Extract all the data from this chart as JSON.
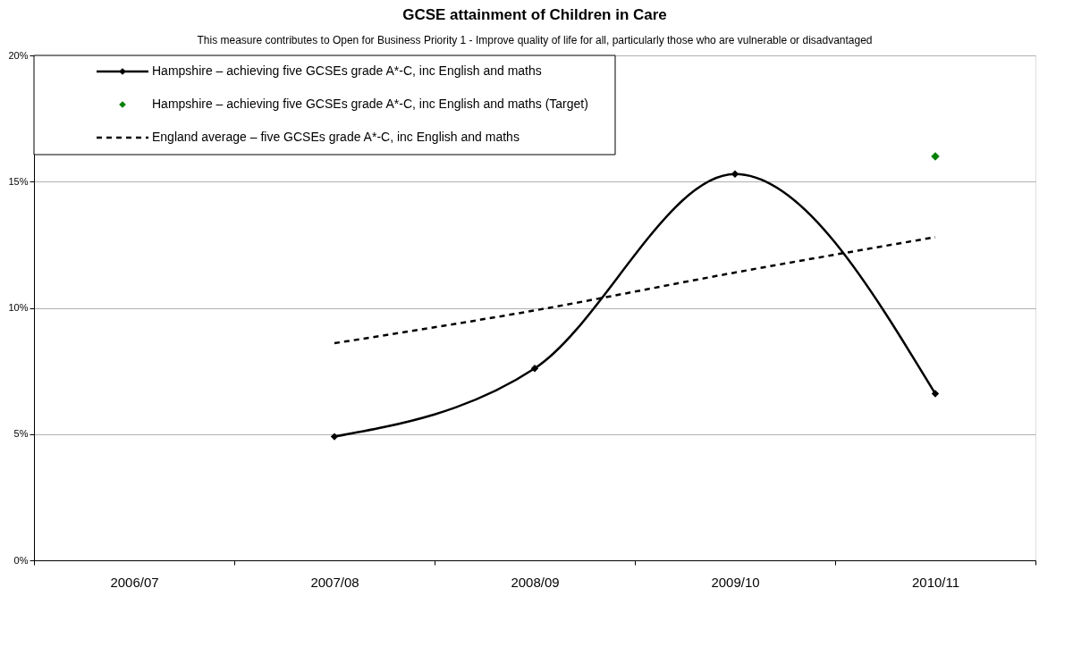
{
  "chart_data": {
    "type": "line",
    "title": "GCSE attainment of Children in Care",
    "subtitle": "This measure contributes to Open for Business Priority 1 - Improve quality of life for all, particularly those who are vulnerable or disadvantaged",
    "categories": [
      "2006/07",
      "2007/08",
      "2008/09",
      "2009/10",
      "2010/11"
    ],
    "series": [
      {
        "name": "Hampshire – achieving five GCSEs grade A*-C, inc English and maths",
        "color": "#000000",
        "marker": "diamond",
        "line_style": "solid",
        "values": [
          null,
          4.9,
          7.6,
          15.3,
          6.6
        ]
      },
      {
        "name": "Hampshire – achieving five GCSEs grade A*-C, inc English and maths (Target)",
        "type": "scatter",
        "color": "#008000",
        "marker": "diamond",
        "values": [
          null,
          null,
          null,
          null,
          16
        ]
      },
      {
        "name": "England average – five GCSEs grade A*-C, inc English and maths",
        "color": "#000000",
        "marker": "none",
        "line_style": "dashed",
        "values": [
          null,
          8.6,
          9.9,
          11.4,
          12.8
        ]
      }
    ],
    "ylim": [
      0,
      20
    ],
    "yticks": [
      {
        "value": 0,
        "label": "0%"
      },
      {
        "value": 5,
        "label": "5%"
      },
      {
        "value": 10,
        "label": "10%"
      },
      {
        "value": 15,
        "label": "15%"
      },
      {
        "value": 20,
        "label": "20%"
      }
    ],
    "grid": "y",
    "legend": "top left"
  }
}
